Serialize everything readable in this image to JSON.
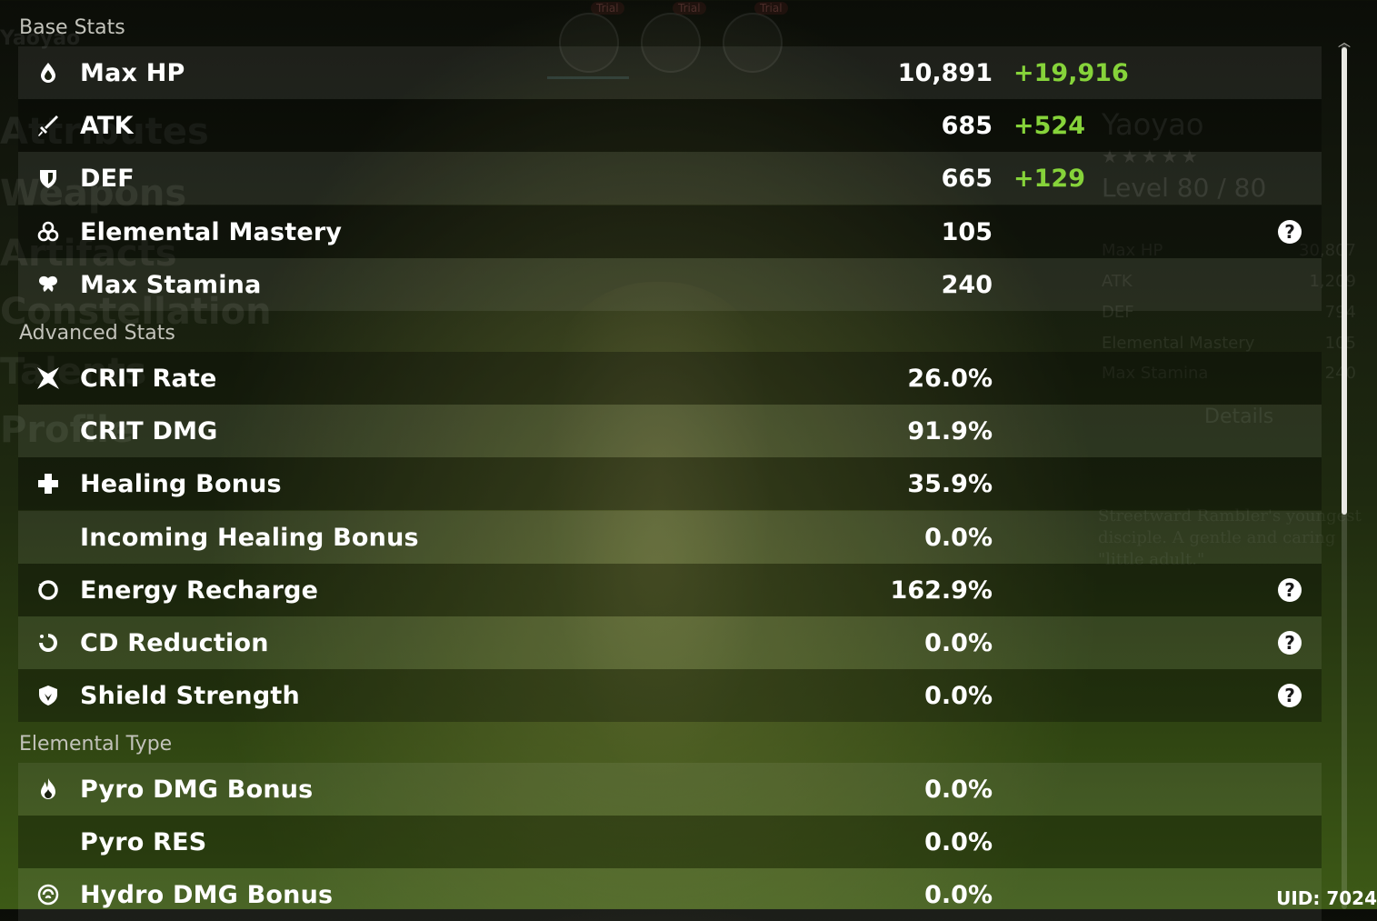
{
  "background": {
    "nav_items": [
      "Weapons",
      "Artifacts",
      "Constellation",
      "Talents",
      "Profile"
    ],
    "nav_ghost_top": "Attributes",
    "trial_badges": [
      "Trial",
      "Trial",
      "Trial"
    ],
    "character_name": "Yaoyao",
    "header_name": "Yaoyao",
    "stars": "★★★★★",
    "level": "Level 80 / 80",
    "summary_stats": [
      {
        "label": "Max HP",
        "value": "30,807"
      },
      {
        "label": "ATK",
        "value": "1,209"
      },
      {
        "label": "DEF",
        "value": "794"
      },
      {
        "label": "Elemental Mastery",
        "value": "105"
      },
      {
        "label": "Max Stamina",
        "value": "240"
      }
    ],
    "details_label": "Details",
    "description": "Streetward Rambler's youngest disciple. A gentle and caring \"little adult.\""
  },
  "sections": {
    "base": "Base Stats",
    "advanced": "Advanced Stats",
    "elemental": "Elemental Type"
  },
  "base_stats": [
    {
      "icon": "hp-droplet-icon",
      "label": "Max HP",
      "value": "10,891",
      "bonus": "+19,916"
    },
    {
      "icon": "sword-icon",
      "label": "ATK",
      "value": "685",
      "bonus": "+524"
    },
    {
      "icon": "shield-icon",
      "label": "DEF",
      "value": "665",
      "bonus": "+129"
    },
    {
      "icon": "elemental-mastery-icon",
      "label": "Elemental Mastery",
      "value": "105",
      "help": true
    },
    {
      "icon": "stamina-icon",
      "label": "Max Stamina",
      "value": "240"
    }
  ],
  "advanced_stats": [
    {
      "icon": "crit-star-icon",
      "label": "CRIT Rate",
      "value": "26.0%"
    },
    {
      "label": "CRIT DMG",
      "value": "91.9%"
    },
    {
      "icon": "healing-cross-icon",
      "label": "Healing Bonus",
      "value": "35.9%"
    },
    {
      "label": "Incoming Healing Bonus",
      "value": "0.0%"
    },
    {
      "icon": "energy-recharge-icon",
      "label": "Energy Recharge",
      "value": "162.9%",
      "help": true
    },
    {
      "icon": "cd-reduction-icon",
      "label": "CD Reduction",
      "value": "0.0%",
      "help": true
    },
    {
      "icon": "shield-strength-icon",
      "label": "Shield Strength",
      "value": "0.0%",
      "help": true
    }
  ],
  "elemental_stats": [
    {
      "icon": "pyro-icon",
      "label": "Pyro DMG Bonus",
      "value": "0.0%"
    },
    {
      "label": "Pyro RES",
      "value": "0.0%"
    },
    {
      "icon": "hydro-icon",
      "label": "Hydro DMG Bonus",
      "value": "0.0%"
    }
  ],
  "help_glyph": "?",
  "uid": "UID: 7024",
  "colors": {
    "bonus": "#86d33a",
    "section": "#c3c3bb",
    "accent_bg": "#2f4412"
  }
}
